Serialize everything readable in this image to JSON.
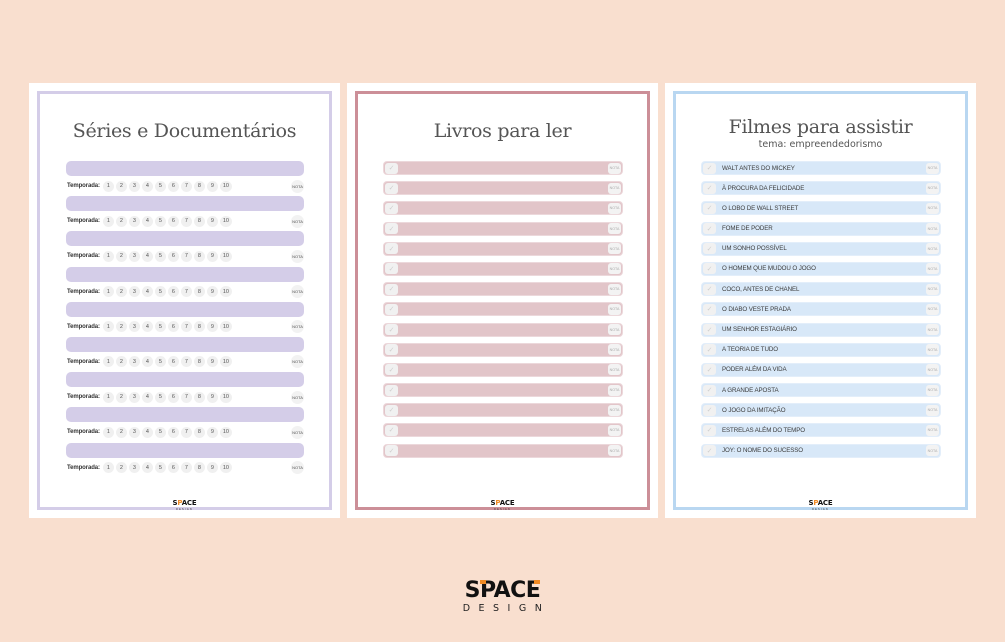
{
  "colors": {
    "background": "#f9dfcf",
    "series_accent": "#d4cde8",
    "books_accent": "#cc8f98",
    "books_row": "#e2c5c9",
    "movies_accent": "#b9d7f1",
    "movies_row": "#d8e8f8",
    "logo_accent": "#f08a24"
  },
  "pages": [
    {
      "title": "Séries e Documentários",
      "season_label": "Temporada:",
      "season_numbers": [
        "1",
        "2",
        "3",
        "4",
        "5",
        "6",
        "7",
        "8",
        "9",
        "10"
      ],
      "rating_label": "NOTA",
      "row_count": 9
    },
    {
      "title": "Livros para ler",
      "check_glyph": "✓",
      "rating_label": "NOTA",
      "items": [
        "",
        "",
        "",
        "",
        "",
        "",
        "",
        "",
        "",
        "",
        "",
        "",
        "",
        "",
        ""
      ]
    },
    {
      "title": "Filmes para assistir",
      "subtitle": "tema: empreendedorismo",
      "check_glyph": "✓",
      "rating_label": "NOTA",
      "items": [
        "WALT ANTES DO MICKEY",
        "À PROCURA DA FELICIDADE",
        "O LOBO DE WALL STREET",
        "FOME DE PODER",
        "UM SONHO POSSÍVEL",
        "O HOMEM QUE MUDOU O JOGO",
        "COCO, ANTES DE CHANEL",
        "O DIABO VESTE PRADA",
        " UM SENHOR ESTAGIÁRIO",
        "A TEORIA DE TUDO",
        "PODER ALÉM DA VIDA",
        "A GRANDE APOSTA",
        "O JOGO DA IMITAÇÃO",
        "ESTRELAS ALÉM DO TEMPO",
        "JOY: O NOME DO SUCESSO"
      ]
    }
  ],
  "brand": {
    "word_a": "S",
    "word_p": "P",
    "word_b": "AC",
    "word_e": "E",
    "sub": "DESIGN"
  }
}
